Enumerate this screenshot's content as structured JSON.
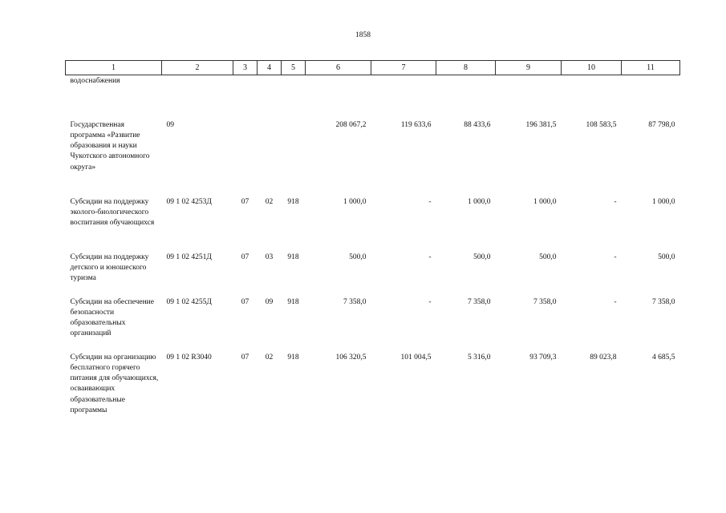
{
  "page_number": "1858",
  "columns": [
    "1",
    "2",
    "3",
    "4",
    "5",
    "6",
    "7",
    "8",
    "9",
    "10",
    "11"
  ],
  "continuation_text": "водоснабжения",
  "rows": [
    {
      "name": "Государственная программа «Развитие образования и науки Чукотского автономного округа»",
      "code": "09",
      "rz": "",
      "pr": "",
      "grbs": "",
      "v6": "208 067,2",
      "v7": "119 633,6",
      "v8": "88 433,6",
      "v9": "196 381,5",
      "v10": "108 583,5",
      "v11": "87 798,0"
    },
    {
      "name": "Субсидии на поддержку эколого-биологического воспитания обучающихся",
      "code": "09 1 02 4253Д",
      "rz": "07",
      "pr": "02",
      "grbs": "918",
      "v6": "1 000,0",
      "v7": "-",
      "v8": "1 000,0",
      "v9": "1 000,0",
      "v10": "-",
      "v11": "1 000,0"
    },
    {
      "name": "Субсидии на поддержку детского и юношеского туризма",
      "code": "09 1 02 4251Д",
      "rz": "07",
      "pr": "03",
      "grbs": "918",
      "v6": "500,0",
      "v7": "-",
      "v8": "500,0",
      "v9": "500,0",
      "v10": "-",
      "v11": "500,0"
    },
    {
      "name": "Субсидии на обеспечение безопасности образовательных организаций",
      "code": "09 1 02 4255Д",
      "rz": "07",
      "pr": "09",
      "grbs": "918",
      "v6": "7 358,0",
      "v7": "-",
      "v8": "7 358,0",
      "v9": "7 358,0",
      "v10": "-",
      "v11": "7 358,0"
    },
    {
      "name": "Субсидии на организацию бесплатного горячего питания для обучающихся, осваивающих образовательные программы",
      "code": "09 1 02 R3040",
      "rz": "07",
      "pr": "02",
      "grbs": "918",
      "v6": "106 320,5",
      "v7": "101 004,5",
      "v8": "5 316,0",
      "v9": "93 709,3",
      "v10": "89 023,8",
      "v11": "4 685,5"
    }
  ]
}
